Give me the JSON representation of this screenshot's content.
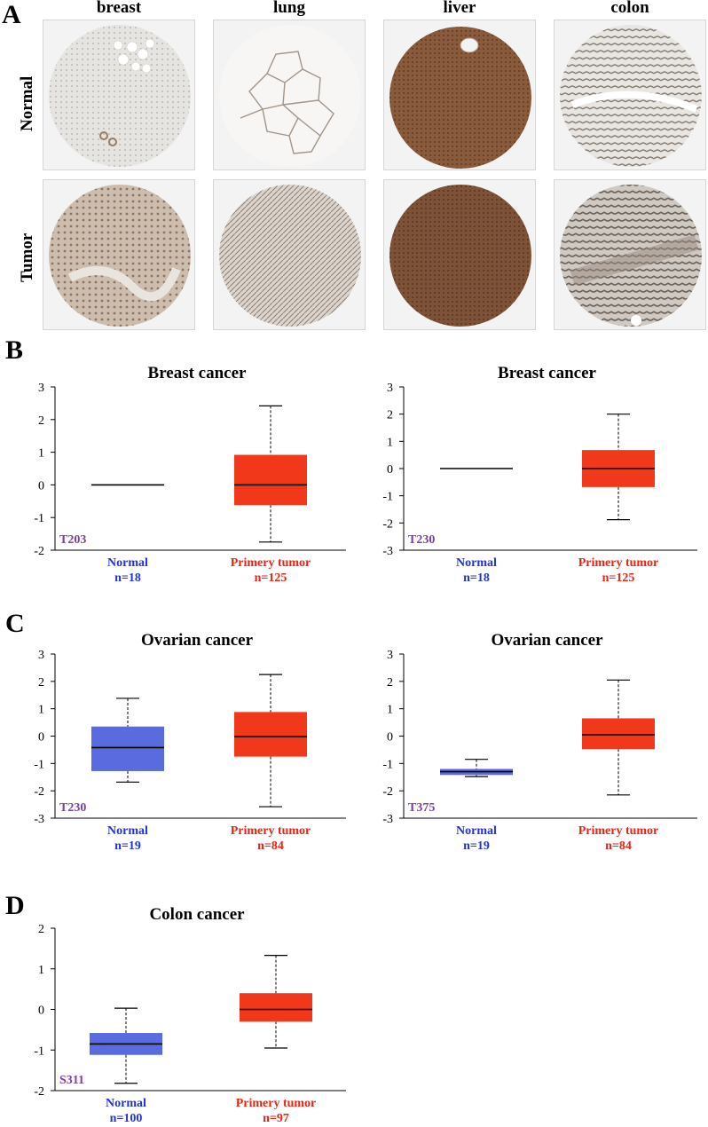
{
  "panel_a": {
    "letter": "A",
    "tissues": [
      "breast",
      "lung",
      "liver",
      "colon"
    ],
    "rows": [
      "Normal",
      "Tumor"
    ]
  },
  "panel_letters": {
    "b": "B",
    "c": "C",
    "d": "D"
  },
  "colors": {
    "normal_box": "#5a6be0",
    "tumor_box": "#f2381a",
    "normal_label": "#2233dd",
    "tumor_label": "#ee2211",
    "site_label": "#7a3fa8",
    "stain_brown": "#8a5a3c"
  },
  "chart_data": [
    {
      "type": "boxplot",
      "title": "Breast cancer",
      "site": "T203",
      "ylim": [
        -2,
        3
      ],
      "yticks": [
        -2,
        -1,
        0,
        1,
        2,
        3
      ],
      "groups": [
        {
          "name": "Normal",
          "n_label": "n=18",
          "min": 0,
          "q1": 0,
          "median": 0,
          "q3": 0,
          "max": 0
        },
        {
          "name": "Primery tumor",
          "n_label": "n=125",
          "min": -1.75,
          "q1": -0.62,
          "median": 0.0,
          "q3": 0.92,
          "max": 2.42
        }
      ]
    },
    {
      "type": "boxplot",
      "title": "Breast cancer",
      "site": "T230",
      "ylim": [
        -3,
        3
      ],
      "yticks": [
        -3,
        -2,
        -1,
        0,
        1,
        2,
        3
      ],
      "groups": [
        {
          "name": "Normal",
          "n_label": "n=18",
          "min": 0,
          "q1": 0,
          "median": 0,
          "q3": 0,
          "max": 0
        },
        {
          "name": "Primery tumor",
          "n_label": "n=125",
          "min": -1.88,
          "q1": -0.68,
          "median": 0.0,
          "q3": 0.68,
          "max": 2.0
        }
      ]
    },
    {
      "type": "boxplot",
      "title": "Ovarian cancer",
      "site": "T230",
      "ylim": [
        -3,
        3
      ],
      "yticks": [
        -3,
        -2,
        -1,
        0,
        1,
        2,
        3
      ],
      "groups": [
        {
          "name": "Normal",
          "n_label": "n=19",
          "min": -1.68,
          "q1": -1.28,
          "median": -0.42,
          "q3": 0.35,
          "max": 1.38
        },
        {
          "name": "Primery tumor",
          "n_label": "n=84",
          "min": -2.58,
          "q1": -0.75,
          "median": -0.02,
          "q3": 0.88,
          "max": 2.25
        }
      ]
    },
    {
      "type": "boxplot",
      "title": "Ovarian cancer",
      "site": "T375",
      "ylim": [
        -3,
        3
      ],
      "yticks": [
        -3,
        -2,
        -1,
        0,
        1,
        2,
        3
      ],
      "groups": [
        {
          "name": "Normal",
          "n_label": "n=19",
          "min": -1.48,
          "q1": -1.42,
          "median": -1.3,
          "q3": -1.2,
          "max": -0.85
        },
        {
          "name": "Primery tumor",
          "n_label": "n=84",
          "min": -2.15,
          "q1": -0.48,
          "median": 0.05,
          "q3": 0.65,
          "max": 2.05
        }
      ]
    },
    {
      "type": "boxplot",
      "title": "Colon cancer",
      "site": "S311",
      "ylim": [
        -2,
        2
      ],
      "yticks": [
        -2,
        -1,
        0,
        1,
        2
      ],
      "groups": [
        {
          "name": "Normal",
          "n_label": "n=100",
          "min": -1.82,
          "q1": -1.12,
          "median": -0.85,
          "q3": -0.58,
          "max": 0.03
        },
        {
          "name": "Primery tumor",
          "n_label": "n=97",
          "min": -0.95,
          "q1": -0.3,
          "median": 0.0,
          "q3": 0.4,
          "max": 1.33
        }
      ]
    }
  ]
}
